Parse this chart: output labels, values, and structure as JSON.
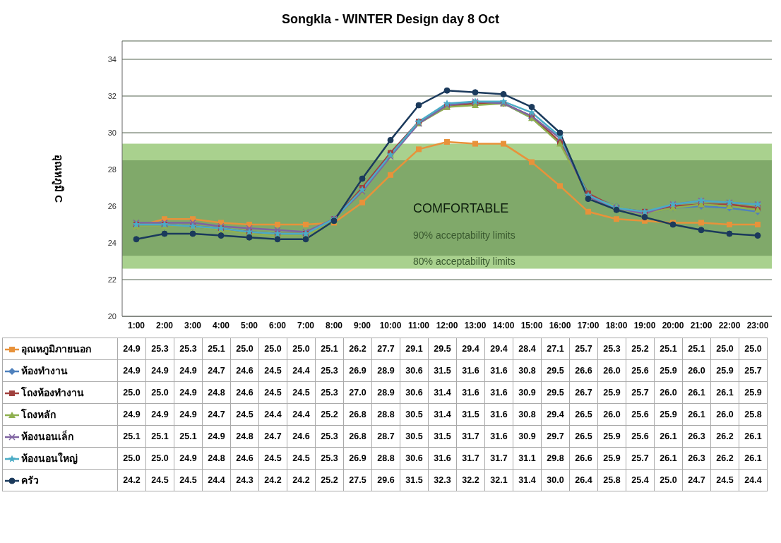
{
  "chart_data": {
    "type": "line",
    "title": "Songkla - WINTER Design day 8 Oct",
    "ylabel": "อุณหภูมิ C",
    "categories": [
      "1:00",
      "2:00",
      "3:00",
      "4:00",
      "5:00",
      "6:00",
      "7:00",
      "8:00",
      "9:00",
      "10:00",
      "11:00",
      "12:00",
      "13:00",
      "14:00",
      "15:00",
      "16:00",
      "17:00",
      "18:00",
      "19:00",
      "20:00",
      "21:00",
      "22:00",
      "23:00"
    ],
    "series": [
      {
        "name": "อุณหภูมิภายนอก",
        "color": "#e8923a",
        "marker": "square",
        "values": [
          24.9,
          25.3,
          25.3,
          25.1,
          25.0,
          25.0,
          25.0,
          25.1,
          26.2,
          27.7,
          29.1,
          29.5,
          29.4,
          29.4,
          28.4,
          27.1,
          25.7,
          25.3,
          25.2,
          25.1,
          25.1,
          25.0,
          25.0
        ],
        "value_labels": [
          "24.9",
          "25.3",
          "25.3",
          "25.1",
          "25.0",
          "25.0",
          "25.0",
          "25.1",
          "26.2",
          "27.7",
          "29.1",
          "29.5",
          "29.4",
          "29.4",
          "28.4",
          "27.1",
          "25.7",
          "25.3",
          "25.2",
          "25.1",
          "25.1",
          "25.0",
          "25.0"
        ]
      },
      {
        "name": "ห้องทำงาน",
        "color": "#4f81bd",
        "marker": "diamond",
        "values": [
          24.9,
          24.9,
          24.9,
          24.7,
          24.6,
          24.5,
          24.4,
          25.3,
          26.9,
          28.9,
          30.6,
          31.5,
          31.6,
          31.6,
          30.8,
          29.5,
          26.6,
          26.0,
          25.6,
          25.9,
          26.0,
          25.9,
          25.7
        ],
        "value_labels": [
          "24.9",
          "24.9",
          "24.9",
          "24.7",
          "24.6",
          "24.5",
          "24.4",
          "25.3",
          "26.9",
          "28.9",
          "30.6",
          "31.5",
          "31.6",
          "31.6",
          "30.8",
          "29.5",
          "26.6",
          "26.0",
          "25.6",
          "25.9",
          "26.0",
          "25.9",
          "25.7"
        ]
      },
      {
        "name": "โถงห้องทำงาน",
        "color": "#a0413e",
        "marker": "square",
        "values": [
          25.0,
          25.0,
          24.9,
          24.8,
          24.6,
          24.5,
          24.5,
          25.3,
          27.0,
          28.9,
          30.6,
          31.4,
          31.6,
          31.6,
          30.9,
          29.5,
          26.7,
          25.9,
          25.7,
          26.0,
          26.1,
          26.1,
          25.9
        ],
        "value_labels": [
          "25.0",
          "25.0",
          "24.9",
          "24.8",
          "24.6",
          "24.5",
          "24.5",
          "25.3",
          "27.0",
          "28.9",
          "30.6",
          "31.4",
          "31.6",
          "31.6",
          "30.9",
          "29.5",
          "26.7",
          "25.9",
          "25.7",
          "26.0",
          "26.1",
          "26.1",
          "25.9"
        ]
      },
      {
        "name": "โถงหลัก",
        "color": "#8fb050",
        "marker": "triangle",
        "values": [
          24.9,
          24.9,
          24.9,
          24.7,
          24.5,
          24.4,
          24.4,
          25.2,
          26.8,
          28.8,
          30.5,
          31.4,
          31.5,
          31.6,
          30.8,
          29.4,
          26.5,
          26.0,
          25.6,
          25.9,
          26.1,
          26.0,
          25.8
        ],
        "value_labels": [
          "24.9",
          "24.9",
          "24.9",
          "24.7",
          "24.5",
          "24.4",
          "24.4",
          "25.2",
          "26.8",
          "28.8",
          "30.5",
          "31.4",
          "31.5",
          "31.6",
          "30.8",
          "29.4",
          "26.5",
          "26.0",
          "25.6",
          "25.9",
          "26.1",
          "26.0",
          "25.8"
        ]
      },
      {
        "name": "ห้องนอนเล็ก",
        "color": "#7f63a1",
        "marker": "cross",
        "values": [
          25.1,
          25.1,
          25.1,
          24.9,
          24.8,
          24.7,
          24.6,
          25.3,
          26.8,
          28.7,
          30.5,
          31.5,
          31.7,
          31.6,
          30.9,
          29.7,
          26.5,
          25.9,
          25.6,
          26.1,
          26.3,
          26.2,
          26.1
        ],
        "value_labels": [
          "25.1",
          "25.1",
          "25.1",
          "24.9",
          "24.8",
          "24.7",
          "24.6",
          "25.3",
          "26.8",
          "28.7",
          "30.5",
          "31.5",
          "31.7",
          "31.6",
          "30.9",
          "29.7",
          "26.5",
          "25.9",
          "25.6",
          "26.1",
          "26.3",
          "26.2",
          "26.1"
        ]
      },
      {
        "name": "ห้องนอนใหญ่",
        "color": "#4bacc6",
        "marker": "star",
        "values": [
          25.0,
          25.0,
          24.9,
          24.8,
          24.6,
          24.5,
          24.5,
          25.3,
          26.9,
          28.8,
          30.6,
          31.6,
          31.7,
          31.7,
          31.1,
          29.8,
          26.6,
          25.9,
          25.7,
          26.1,
          26.3,
          26.2,
          26.1
        ],
        "value_labels": [
          "25.0",
          "25.0",
          "24.9",
          "24.8",
          "24.6",
          "24.5",
          "24.5",
          "25.3",
          "26.9",
          "28.8",
          "30.6",
          "31.6",
          "31.7",
          "31.7",
          "31.1",
          "29.8",
          "26.6",
          "25.9",
          "25.7",
          "26.1",
          "26.3",
          "26.2",
          "26.1"
        ]
      },
      {
        "name": "ครัว",
        "color": "#1b3a5c",
        "marker": "circle",
        "values": [
          24.2,
          24.5,
          24.5,
          24.4,
          24.3,
          24.2,
          24.2,
          25.2,
          27.5,
          29.6,
          31.5,
          32.3,
          32.2,
          32.1,
          31.4,
          30.0,
          26.4,
          25.8,
          25.4,
          25.0,
          24.7,
          24.5,
          24.4
        ],
        "value_labels": [
          "24.2",
          "24.5",
          "24.5",
          "24.4",
          "24.3",
          "24.2",
          "24.2",
          "25.2",
          "27.5",
          "29.6",
          "31.5",
          "32.3",
          "32.2",
          "32.1",
          "31.4",
          "30.0",
          "26.4",
          "25.8",
          "25.4",
          "25.0",
          "24.7",
          "24.5",
          "24.4"
        ]
      }
    ],
    "ylim": [
      20,
      35
    ],
    "yticks": [
      20,
      22,
      24,
      26,
      28,
      30,
      32,
      34
    ],
    "grid": "y",
    "legend": "bottom",
    "line_style": "solid",
    "bands": [
      {
        "axis": "y",
        "from": 22.6,
        "to": 29.4,
        "label": "80% acceptability limits",
        "color": "#a9d18e"
      },
      {
        "axis": "y",
        "from": 23.3,
        "to": 28.5,
        "label": "90% acceptability limits",
        "color": "#80a96a"
      }
    ],
    "annotations": [
      "COMFORTABLE"
    ]
  }
}
